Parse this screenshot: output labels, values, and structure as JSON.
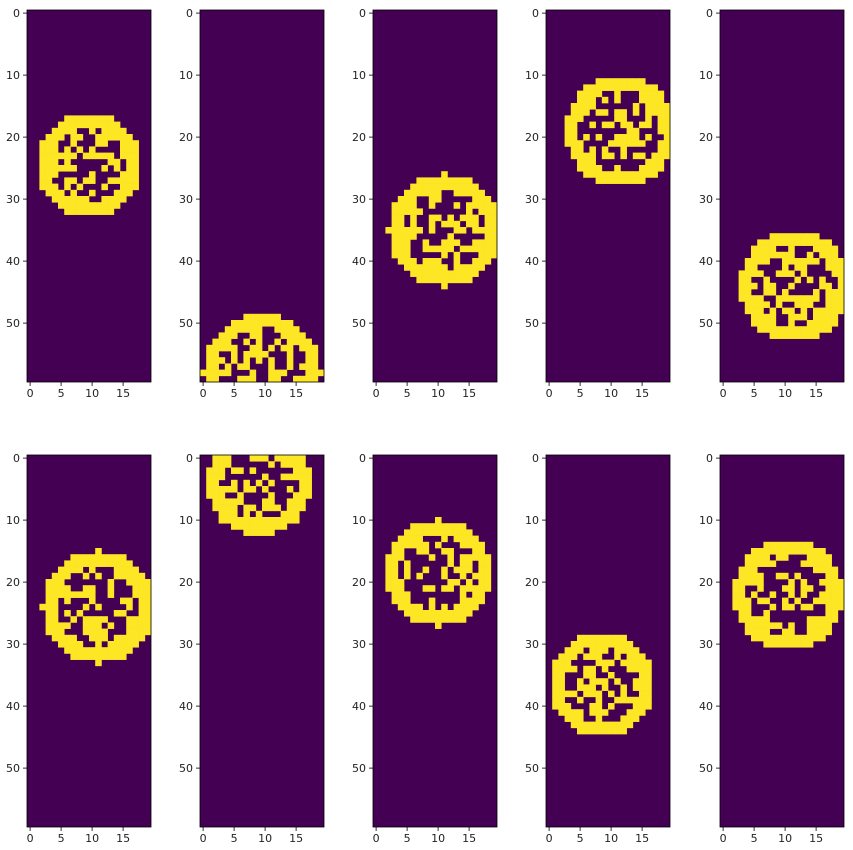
{
  "chart_data": {
    "type": "heatmap",
    "layout": {
      "rows": 2,
      "cols": 5
    },
    "image_shape": {
      "rows": 60,
      "cols": 20
    },
    "colormap": {
      "low": "#440154",
      "high": "#fde725"
    },
    "xticks": [
      0,
      5,
      10,
      15
    ],
    "yticks": [
      0,
      10,
      20,
      30,
      40,
      50
    ],
    "xlabel": "",
    "ylabel": "",
    "panels": [
      {
        "cx": 9.5,
        "cy": 24.5,
        "r": 8.5
      },
      {
        "cx": 9.5,
        "cy": 58.0,
        "r": 9.5
      },
      {
        "cx": 11.0,
        "cy": 35.0,
        "r": 9.0
      },
      {
        "cx": 11.5,
        "cy": 19.0,
        "r": 9.0
      },
      {
        "cx": 11.5,
        "cy": 44.0,
        "r": 9.0
      },
      {
        "cx": 11.0,
        "cy": 24.0,
        "r": 9.0
      },
      {
        "cx": 9.0,
        "cy": 4.0,
        "r": 8.5
      },
      {
        "cx": 10.0,
        "cy": 18.5,
        "r": 8.5
      },
      {
        "cx": 8.5,
        "cy": 36.5,
        "r": 8.5
      },
      {
        "cx": 10.5,
        "cy": 22.0,
        "r": 9.0
      }
    ]
  }
}
